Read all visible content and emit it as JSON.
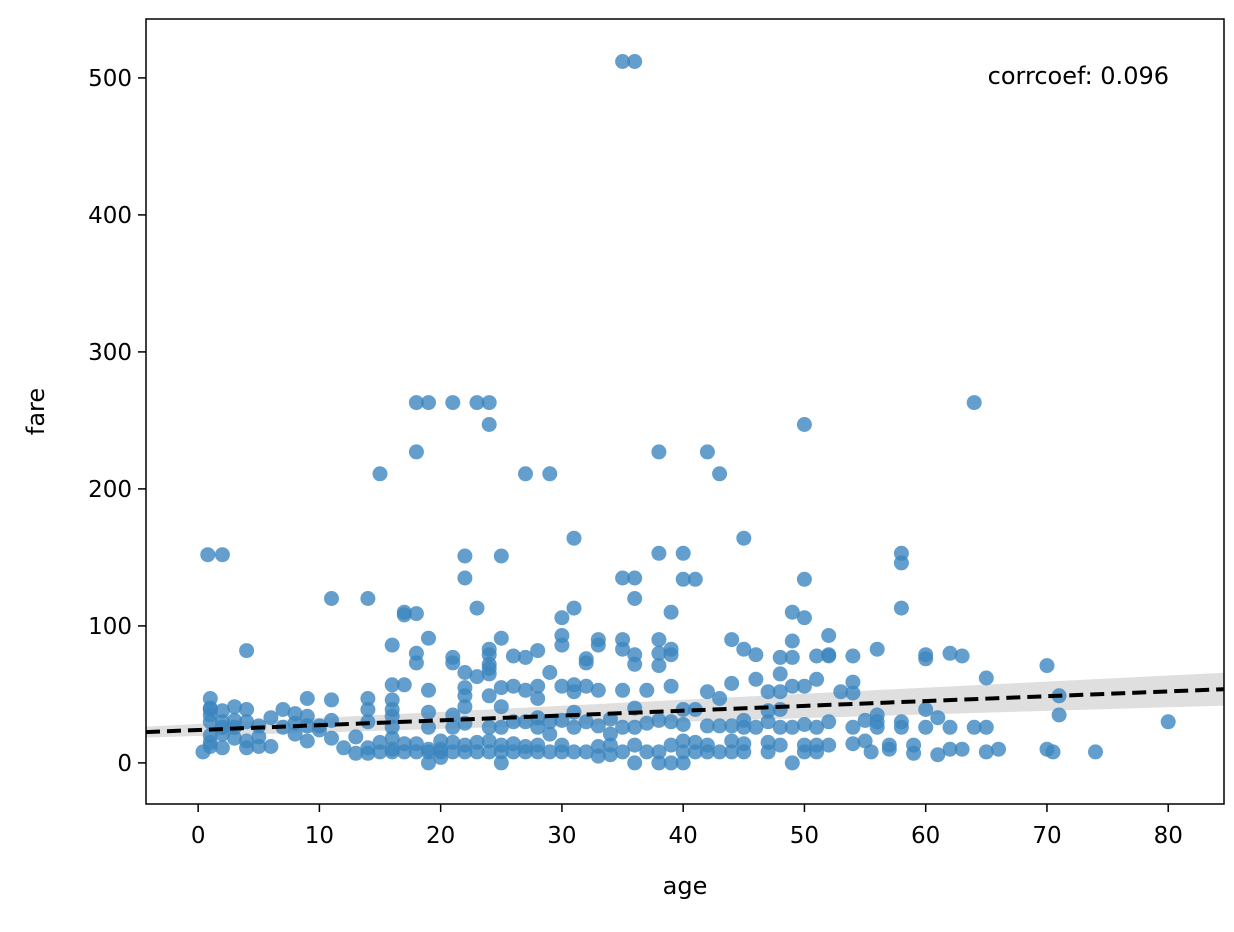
{
  "colors": {
    "points": "#3c86bf",
    "regression_line": "#000000",
    "confidence_band": "#d9d9d9",
    "axes": "#000000",
    "background": "#ffffff"
  },
  "chart_data": {
    "type": "scatter",
    "title": "",
    "xlabel": "age",
    "ylabel": "fare",
    "xlim": [
      -4.3,
      84.6
    ],
    "ylim": [
      -30,
      543
    ],
    "xticks": [
      0,
      10,
      20,
      30,
      40,
      50,
      60,
      70,
      80
    ],
    "yticks": [
      0,
      100,
      200,
      300,
      400,
      500
    ],
    "grid": false,
    "annotation": "corrcoef: 0.096",
    "annotation_position": "top-right",
    "regression": {
      "style": "dashed",
      "x": [
        -4.3,
        84.6
      ],
      "y": [
        22.5,
        53.8
      ],
      "ci_halfwidth": [
        4,
        12
      ]
    },
    "points": [
      [
        0.4,
        8
      ],
      [
        0.8,
        152
      ],
      [
        1,
        47
      ],
      [
        1,
        40
      ],
      [
        1,
        39
      ],
      [
        1,
        35
      ],
      [
        1,
        30
      ],
      [
        1,
        20
      ],
      [
        1,
        15
      ],
      [
        1,
        12
      ],
      [
        2,
        152
      ],
      [
        2,
        38
      ],
      [
        2,
        30
      ],
      [
        2,
        26
      ],
      [
        2,
        21
      ],
      [
        2,
        11
      ],
      [
        3,
        41
      ],
      [
        3,
        31
      ],
      [
        3,
        26
      ],
      [
        3,
        18
      ],
      [
        4,
        82
      ],
      [
        4,
        39
      ],
      [
        4,
        30
      ],
      [
        4,
        16
      ],
      [
        4,
        11
      ],
      [
        5,
        27
      ],
      [
        5,
        19
      ],
      [
        5,
        12
      ],
      [
        6,
        33
      ],
      [
        6,
        12
      ],
      [
        7,
        39
      ],
      [
        7,
        26
      ],
      [
        8,
        36
      ],
      [
        8,
        29
      ],
      [
        8,
        21
      ],
      [
        9,
        47
      ],
      [
        9,
        34
      ],
      [
        9,
        27
      ],
      [
        9,
        16
      ],
      [
        10,
        27
      ],
      [
        10,
        24
      ],
      [
        11,
        120
      ],
      [
        11,
        46
      ],
      [
        11,
        31
      ],
      [
        11,
        18
      ],
      [
        12,
        11
      ],
      [
        13,
        19
      ],
      [
        13,
        7
      ],
      [
        14,
        120
      ],
      [
        14,
        47
      ],
      [
        14,
        39
      ],
      [
        14,
        30
      ],
      [
        14,
        11
      ],
      [
        14,
        7
      ],
      [
        15,
        211
      ],
      [
        15,
        15
      ],
      [
        15,
        8
      ],
      [
        16,
        86
      ],
      [
        16,
        57
      ],
      [
        16,
        46
      ],
      [
        16,
        39
      ],
      [
        16,
        34
      ],
      [
        16,
        26
      ],
      [
        16,
        18
      ],
      [
        16,
        10
      ],
      [
        16,
        8
      ],
      [
        17,
        110
      ],
      [
        17,
        108
      ],
      [
        17,
        57
      ],
      [
        17,
        14
      ],
      [
        17,
        8
      ],
      [
        18,
        263
      ],
      [
        18,
        227
      ],
      [
        18,
        109
      ],
      [
        18,
        80
      ],
      [
        18,
        73
      ],
      [
        18,
        14
      ],
      [
        18,
        8
      ],
      [
        19,
        263
      ],
      [
        19,
        91
      ],
      [
        19,
        53
      ],
      [
        19,
        37
      ],
      [
        19,
        26
      ],
      [
        19,
        10
      ],
      [
        19,
        8
      ],
      [
        19,
        0
      ],
      [
        20,
        16
      ],
      [
        20,
        10
      ],
      [
        20,
        8
      ],
      [
        20,
        4
      ],
      [
        21,
        263
      ],
      [
        21,
        77
      ],
      [
        21,
        73
      ],
      [
        21,
        35
      ],
      [
        21,
        26
      ],
      [
        21,
        15
      ],
      [
        21,
        8
      ],
      [
        22,
        151
      ],
      [
        22,
        135
      ],
      [
        22,
        66
      ],
      [
        22,
        55
      ],
      [
        22,
        49
      ],
      [
        22,
        41
      ],
      [
        22,
        29
      ],
      [
        22,
        13
      ],
      [
        22,
        8
      ],
      [
        23,
        263
      ],
      [
        23,
        113
      ],
      [
        23,
        63
      ],
      [
        23,
        15
      ],
      [
        23,
        8
      ],
      [
        24,
        263
      ],
      [
        24,
        247
      ],
      [
        24,
        83
      ],
      [
        24,
        79
      ],
      [
        24,
        72
      ],
      [
        24,
        69
      ],
      [
        24,
        65
      ],
      [
        24,
        49
      ],
      [
        24,
        26
      ],
      [
        24,
        16
      ],
      [
        24,
        8
      ],
      [
        25,
        151
      ],
      [
        25,
        91
      ],
      [
        25,
        55
      ],
      [
        25,
        41
      ],
      [
        25,
        26
      ],
      [
        25,
        13
      ],
      [
        25,
        8
      ],
      [
        25,
        0
      ],
      [
        26,
        78
      ],
      [
        26,
        56
      ],
      [
        26,
        30
      ],
      [
        26,
        14
      ],
      [
        26,
        8
      ],
      [
        27,
        211
      ],
      [
        27,
        77
      ],
      [
        27,
        53
      ],
      [
        27,
        30
      ],
      [
        27,
        12
      ],
      [
        27,
        8
      ],
      [
        28,
        82
      ],
      [
        28,
        56
      ],
      [
        28,
        47
      ],
      [
        28,
        33
      ],
      [
        28,
        26
      ],
      [
        28,
        13
      ],
      [
        28,
        8
      ],
      [
        29,
        211
      ],
      [
        29,
        66
      ],
      [
        29,
        30
      ],
      [
        29,
        21
      ],
      [
        29,
        8
      ],
      [
        30,
        106
      ],
      [
        30,
        93
      ],
      [
        30,
        86
      ],
      [
        30,
        56
      ],
      [
        30,
        31
      ],
      [
        30,
        13
      ],
      [
        30,
        8
      ],
      [
        31,
        164
      ],
      [
        31,
        113
      ],
      [
        31,
        57
      ],
      [
        31,
        52
      ],
      [
        31,
        37
      ],
      [
        31,
        26
      ],
      [
        31,
        8
      ],
      [
        32,
        76
      ],
      [
        32,
        73
      ],
      [
        32,
        56
      ],
      [
        32,
        30
      ],
      [
        32,
        8
      ],
      [
        33,
        90
      ],
      [
        33,
        86
      ],
      [
        33,
        53
      ],
      [
        33,
        27
      ],
      [
        33,
        12
      ],
      [
        33,
        5
      ],
      [
        34,
        32
      ],
      [
        34,
        21
      ],
      [
        34,
        13
      ],
      [
        34,
        6
      ],
      [
        35,
        512
      ],
      [
        35,
        135
      ],
      [
        35,
        90
      ],
      [
        35,
        83
      ],
      [
        35,
        53
      ],
      [
        35,
        26
      ],
      [
        35,
        8
      ],
      [
        36,
        512
      ],
      [
        36,
        135
      ],
      [
        36,
        120
      ],
      [
        36,
        79
      ],
      [
        36,
        72
      ],
      [
        36,
        40
      ],
      [
        36,
        26
      ],
      [
        36,
        13
      ],
      [
        36,
        0
      ],
      [
        37,
        53
      ],
      [
        37,
        29
      ],
      [
        37,
        8
      ],
      [
        38,
        227
      ],
      [
        38,
        153
      ],
      [
        38,
        90
      ],
      [
        38,
        80
      ],
      [
        38,
        71
      ],
      [
        38,
        31
      ],
      [
        38,
        8
      ],
      [
        38,
        0
      ],
      [
        39,
        110
      ],
      [
        39,
        83
      ],
      [
        39,
        79
      ],
      [
        39,
        56
      ],
      [
        39,
        30
      ],
      [
        39,
        13
      ],
      [
        39,
        0
      ],
      [
        40,
        153
      ],
      [
        40,
        134
      ],
      [
        40,
        39
      ],
      [
        40,
        28
      ],
      [
        40,
        16
      ],
      [
        40,
        8
      ],
      [
        40,
        0
      ],
      [
        41,
        134
      ],
      [
        41,
        39
      ],
      [
        41,
        15
      ],
      [
        41,
        8
      ],
      [
        42,
        227
      ],
      [
        42,
        52
      ],
      [
        42,
        27
      ],
      [
        42,
        13
      ],
      [
        42,
        8
      ],
      [
        43,
        211
      ],
      [
        43,
        47
      ],
      [
        43,
        27
      ],
      [
        43,
        8
      ],
      [
        44,
        90
      ],
      [
        44,
        58
      ],
      [
        44,
        27
      ],
      [
        44,
        16
      ],
      [
        44,
        8
      ],
      [
        45,
        164
      ],
      [
        45,
        83
      ],
      [
        45,
        31
      ],
      [
        45,
        26
      ],
      [
        45,
        14
      ],
      [
        45,
        8
      ],
      [
        46,
        79
      ],
      [
        46,
        61
      ],
      [
        46,
        26
      ],
      [
        47,
        52
      ],
      [
        47,
        38
      ],
      [
        47,
        30
      ],
      [
        47,
        15
      ],
      [
        47,
        8
      ],
      [
        48,
        77
      ],
      [
        48,
        65
      ],
      [
        48,
        52
      ],
      [
        48,
        39
      ],
      [
        48,
        26
      ],
      [
        48,
        13
      ],
      [
        49,
        110
      ],
      [
        49,
        89
      ],
      [
        49,
        77
      ],
      [
        49,
        56
      ],
      [
        49,
        26
      ],
      [
        49,
        0
      ],
      [
        50,
        247
      ],
      [
        50,
        134
      ],
      [
        50,
        106
      ],
      [
        50,
        56
      ],
      [
        50,
        28
      ],
      [
        50,
        13
      ],
      [
        50,
        8
      ],
      [
        51,
        78
      ],
      [
        51,
        61
      ],
      [
        51,
        26
      ],
      [
        51,
        13
      ],
      [
        51,
        8
      ],
      [
        52,
        93
      ],
      [
        52,
        79
      ],
      [
        52,
        78
      ],
      [
        52,
        30
      ],
      [
        52,
        13
      ],
      [
        53,
        52
      ],
      [
        54,
        78
      ],
      [
        54,
        59
      ],
      [
        54,
        51
      ],
      [
        54,
        26
      ],
      [
        54,
        14
      ],
      [
        55,
        31
      ],
      [
        55,
        16
      ],
      [
        55.5,
        8
      ],
      [
        56,
        83
      ],
      [
        56,
        35
      ],
      [
        56,
        30
      ],
      [
        56,
        26
      ],
      [
        57,
        10
      ],
      [
        57,
        13
      ],
      [
        58,
        153
      ],
      [
        58,
        146
      ],
      [
        58,
        113
      ],
      [
        58,
        30
      ],
      [
        58,
        26
      ],
      [
        59,
        13
      ],
      [
        59,
        7
      ],
      [
        60,
        79
      ],
      [
        60,
        76
      ],
      [
        60,
        39
      ],
      [
        60,
        26
      ],
      [
        61,
        33
      ],
      [
        61,
        6
      ],
      [
        62,
        80
      ],
      [
        62,
        26
      ],
      [
        62,
        10
      ],
      [
        63,
        78
      ],
      [
        63,
        10
      ],
      [
        64,
        263
      ],
      [
        64,
        26
      ],
      [
        65,
        62
      ],
      [
        65,
        26
      ],
      [
        65,
        8
      ],
      [
        66,
        10
      ],
      [
        70,
        71
      ],
      [
        70,
        10
      ],
      [
        70.5,
        8
      ],
      [
        71,
        49
      ],
      [
        71,
        35
      ],
      [
        74,
        8
      ],
      [
        80,
        30
      ]
    ]
  }
}
